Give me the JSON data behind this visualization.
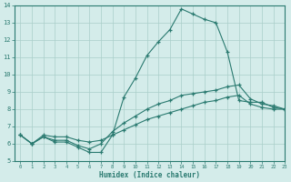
{
  "xlabel": "Humidex (Indice chaleur)",
  "xlim": [
    -0.5,
    23
  ],
  "ylim": [
    5,
    14
  ],
  "xticks": [
    0,
    1,
    2,
    3,
    4,
    5,
    6,
    7,
    8,
    9,
    10,
    11,
    12,
    13,
    14,
    15,
    16,
    17,
    18,
    19,
    20,
    21,
    22,
    23
  ],
  "yticks": [
    5,
    6,
    7,
    8,
    9,
    10,
    11,
    12,
    13,
    14
  ],
  "background_color": "#d4ecea",
  "grid_color": "#aacfca",
  "line_color": "#2a7a70",
  "line1_x": [
    0,
    1,
    2,
    3,
    4,
    5,
    6,
    7,
    8,
    9,
    10,
    11,
    12,
    13,
    14,
    15,
    16,
    17,
    18,
    19,
    20,
    21,
    22,
    23
  ],
  "line1_y": [
    6.5,
    6.0,
    6.4,
    6.1,
    6.1,
    5.8,
    5.5,
    5.5,
    6.5,
    8.7,
    9.8,
    11.1,
    11.9,
    12.6,
    13.8,
    13.5,
    13.2,
    13.0,
    11.3,
    8.5,
    8.4,
    8.4,
    8.1,
    8.0
  ],
  "line2_x": [
    0,
    1,
    2,
    3,
    4,
    5,
    6,
    7,
    8,
    9,
    10,
    11,
    12,
    13,
    14,
    15,
    16,
    17,
    18,
    19,
    20,
    21,
    22,
    23
  ],
  "line2_y": [
    6.5,
    6.0,
    6.4,
    6.2,
    6.2,
    5.9,
    5.7,
    6.0,
    6.7,
    7.2,
    7.6,
    8.0,
    8.3,
    8.5,
    8.8,
    8.9,
    9.0,
    9.1,
    9.3,
    9.4,
    8.6,
    8.3,
    8.2,
    8.0
  ],
  "line3_x": [
    0,
    1,
    2,
    3,
    4,
    5,
    6,
    7,
    8,
    9,
    10,
    11,
    12,
    13,
    14,
    15,
    16,
    17,
    18,
    19,
    20,
    21,
    22,
    23
  ],
  "line3_y": [
    6.5,
    6.0,
    6.5,
    6.4,
    6.4,
    6.2,
    6.1,
    6.2,
    6.5,
    6.8,
    7.1,
    7.4,
    7.6,
    7.8,
    8.0,
    8.2,
    8.4,
    8.5,
    8.7,
    8.8,
    8.3,
    8.1,
    8.0,
    8.0
  ]
}
